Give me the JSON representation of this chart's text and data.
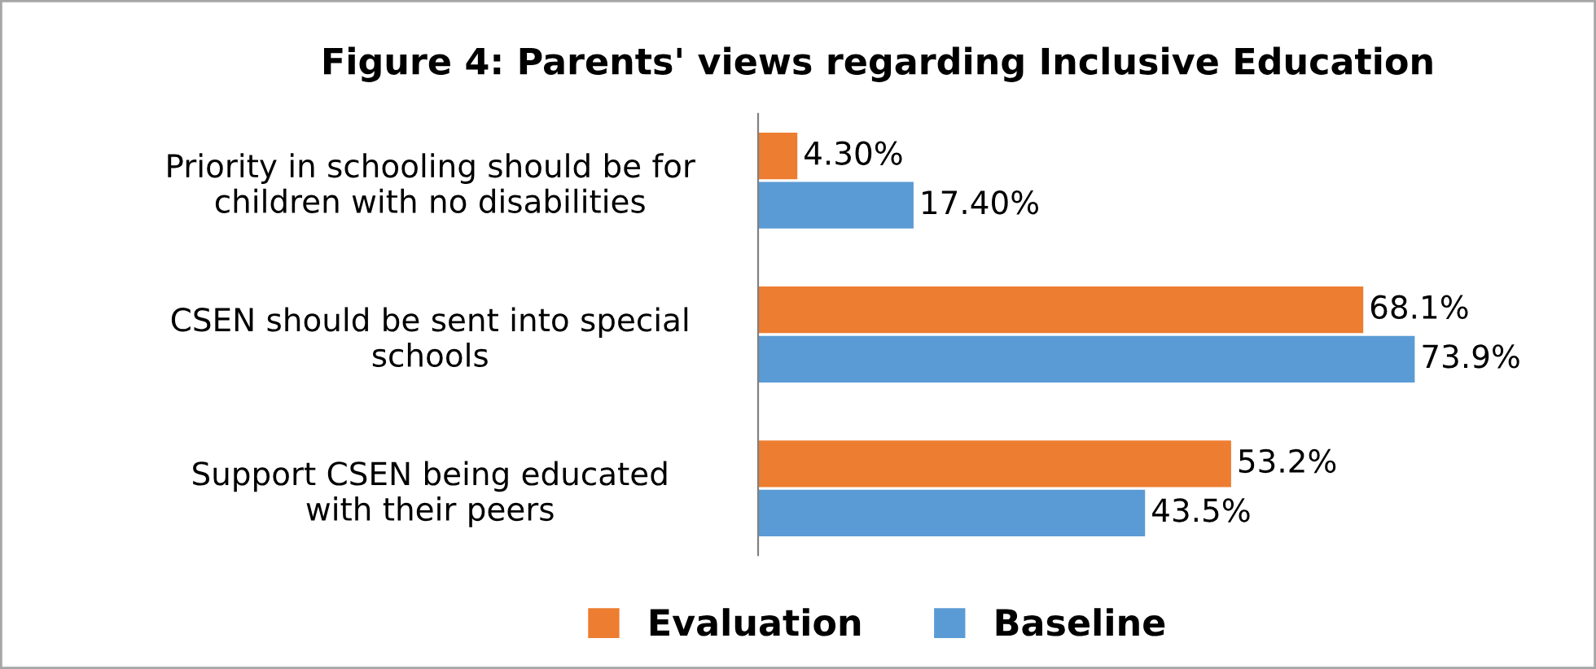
{
  "chart_data": {
    "type": "bar",
    "orientation": "horizontal",
    "title": "Figure 4: Parents' views regarding Inclusive Education",
    "categories": [
      "Priority in schooling should be for\nchildren with no disabilities",
      "CSEN should be sent into special\nschools",
      "Support CSEN being educated\nwith their peers"
    ],
    "series": [
      {
        "name": "Evaluation",
        "color": "#ed7d31",
        "values": [
          4.3,
          68.1,
          53.2
        ],
        "value_labels": [
          "4.30%",
          "68.1%",
          "53.2%"
        ]
      },
      {
        "name": "Baseline",
        "color": "#5b9bd5",
        "values": [
          17.4,
          73.9,
          43.5
        ],
        "value_labels": [
          "17.40%",
          "73.9%",
          "43.5%"
        ]
      }
    ],
    "legend": "bottom",
    "grid": false,
    "tick_labels": "y"
  }
}
